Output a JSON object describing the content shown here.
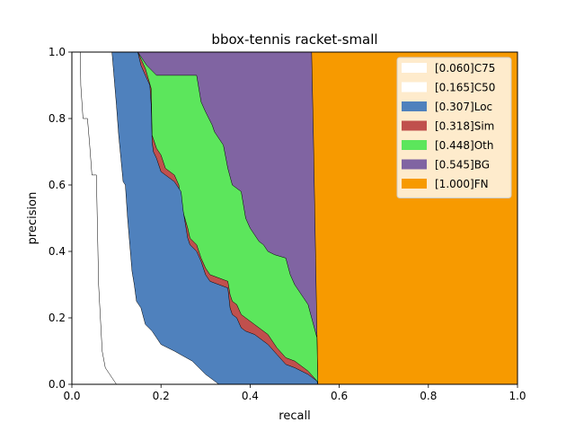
{
  "chart_data": {
    "type": "area",
    "title": "bbox-tennis racket-small",
    "xlabel": "recall",
    "ylabel": "precision",
    "xlim": [
      0,
      1
    ],
    "ylim": [
      0,
      1
    ],
    "xticks": [
      "0.0",
      "0.2",
      "0.4",
      "0.6",
      "0.8",
      "1.0"
    ],
    "yticks": [
      "0.0",
      "0.2",
      "0.4",
      "0.6",
      "0.8",
      "1.0"
    ],
    "grid": false,
    "legend_position": "top-right",
    "series": [
      {
        "name": "[0.060]C75",
        "color": "#ffffff",
        "points": [
          [
            0.0,
            1.0
          ],
          [
            0.019,
            1.0
          ],
          [
            0.02,
            0.9
          ],
          [
            0.025,
            0.8
          ],
          [
            0.035,
            0.8
          ],
          [
            0.04,
            0.72
          ],
          [
            0.045,
            0.63
          ],
          [
            0.055,
            0.63
          ],
          [
            0.06,
            0.3
          ],
          [
            0.068,
            0.1
          ],
          [
            0.075,
            0.05
          ],
          [
            0.085,
            0.03
          ],
          [
            0.1,
            0.0
          ]
        ]
      },
      {
        "name": "[0.165]C50",
        "color": "#ffffff",
        "points": [
          [
            0.0,
            1.0
          ],
          [
            0.09,
            1.0
          ],
          [
            0.095,
            0.92
          ],
          [
            0.1,
            0.84
          ],
          [
            0.105,
            0.75
          ],
          [
            0.11,
            0.68
          ],
          [
            0.115,
            0.61
          ],
          [
            0.12,
            0.6
          ],
          [
            0.125,
            0.5
          ],
          [
            0.13,
            0.42
          ],
          [
            0.135,
            0.34
          ],
          [
            0.14,
            0.3
          ],
          [
            0.145,
            0.25
          ],
          [
            0.155,
            0.23
          ],
          [
            0.165,
            0.18
          ],
          [
            0.18,
            0.16
          ],
          [
            0.2,
            0.12
          ],
          [
            0.23,
            0.1
          ],
          [
            0.27,
            0.07
          ],
          [
            0.3,
            0.03
          ],
          [
            0.33,
            0.0
          ]
        ]
      },
      {
        "name": "[0.307]Loc",
        "color": "#4f81bd",
        "points": [
          [
            0.0,
            1.0
          ],
          [
            0.148,
            1.0
          ],
          [
            0.155,
            0.96
          ],
          [
            0.175,
            0.9
          ],
          [
            0.178,
            0.84
          ],
          [
            0.18,
            0.73
          ],
          [
            0.183,
            0.7
          ],
          [
            0.19,
            0.68
          ],
          [
            0.2,
            0.64
          ],
          [
            0.21,
            0.63
          ],
          [
            0.23,
            0.61
          ],
          [
            0.245,
            0.58
          ],
          [
            0.25,
            0.52
          ],
          [
            0.26,
            0.44
          ],
          [
            0.265,
            0.42
          ],
          [
            0.28,
            0.4
          ],
          [
            0.29,
            0.37
          ],
          [
            0.3,
            0.33
          ],
          [
            0.31,
            0.31
          ],
          [
            0.35,
            0.29
          ],
          [
            0.355,
            0.23
          ],
          [
            0.36,
            0.21
          ],
          [
            0.37,
            0.2
          ],
          [
            0.38,
            0.17
          ],
          [
            0.39,
            0.16
          ],
          [
            0.41,
            0.15
          ],
          [
            0.44,
            0.12
          ],
          [
            0.46,
            0.09
          ],
          [
            0.48,
            0.06
          ],
          [
            0.5,
            0.05
          ],
          [
            0.53,
            0.03
          ],
          [
            0.55,
            0.01
          ],
          [
            0.552,
            0.0
          ]
        ]
      },
      {
        "name": "[0.318]Sim",
        "color": "#c0504d",
        "points": [
          [
            0.0,
            1.0
          ],
          [
            0.148,
            1.0
          ],
          [
            0.165,
            0.95
          ],
          [
            0.178,
            0.89
          ],
          [
            0.18,
            0.75
          ],
          [
            0.19,
            0.71
          ],
          [
            0.2,
            0.69
          ],
          [
            0.21,
            0.65
          ],
          [
            0.23,
            0.63
          ],
          [
            0.24,
            0.6
          ],
          [
            0.245,
            0.54
          ],
          [
            0.26,
            0.47
          ],
          [
            0.265,
            0.44
          ],
          [
            0.28,
            0.42
          ],
          [
            0.29,
            0.38
          ],
          [
            0.3,
            0.35
          ],
          [
            0.31,
            0.33
          ],
          [
            0.35,
            0.31
          ],
          [
            0.355,
            0.27
          ],
          [
            0.36,
            0.25
          ],
          [
            0.37,
            0.24
          ],
          [
            0.38,
            0.21
          ],
          [
            0.39,
            0.2
          ],
          [
            0.41,
            0.18
          ],
          [
            0.44,
            0.15
          ],
          [
            0.46,
            0.11
          ],
          [
            0.48,
            0.08
          ],
          [
            0.5,
            0.07
          ],
          [
            0.53,
            0.04
          ],
          [
            0.55,
            0.01
          ],
          [
            0.552,
            0.0
          ]
        ]
      },
      {
        "name": "[0.448]Oth",
        "color": "#5ce65c",
        "points": [
          [
            0.0,
            1.0
          ],
          [
            0.148,
            1.0
          ],
          [
            0.168,
            0.96
          ],
          [
            0.19,
            0.93
          ],
          [
            0.28,
            0.93
          ],
          [
            0.29,
            0.85
          ],
          [
            0.3,
            0.82
          ],
          [
            0.315,
            0.78
          ],
          [
            0.32,
            0.76
          ],
          [
            0.34,
            0.72
          ],
          [
            0.35,
            0.65
          ],
          [
            0.36,
            0.6
          ],
          [
            0.38,
            0.58
          ],
          [
            0.39,
            0.5
          ],
          [
            0.4,
            0.47
          ],
          [
            0.41,
            0.45
          ],
          [
            0.42,
            0.43
          ],
          [
            0.43,
            0.42
          ],
          [
            0.44,
            0.4
          ],
          [
            0.455,
            0.39
          ],
          [
            0.48,
            0.38
          ],
          [
            0.49,
            0.33
          ],
          [
            0.5,
            0.3
          ],
          [
            0.52,
            0.26
          ],
          [
            0.53,
            0.24
          ],
          [
            0.54,
            0.19
          ],
          [
            0.55,
            0.14
          ],
          [
            0.552,
            0.0
          ]
        ]
      },
      {
        "name": "[0.545]BG",
        "color": "#8064a2",
        "points": [
          [
            0.0,
            1.0
          ],
          [
            0.538,
            1.0
          ],
          [
            0.542,
            0.75
          ],
          [
            0.547,
            0.38
          ],
          [
            0.552,
            0.0
          ]
        ]
      },
      {
        "name": "[1.000]FN",
        "color": "#f79a00",
        "points": [
          [
            0.0,
            1.0
          ],
          [
            1.0,
            1.0
          ],
          [
            1.0,
            0.0
          ]
        ]
      }
    ]
  }
}
